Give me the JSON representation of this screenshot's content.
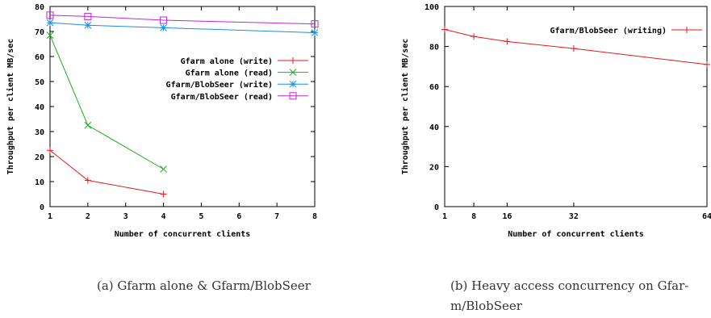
{
  "chart_data": [
    {
      "type": "line",
      "xlabel": "Number of concurrent clients",
      "ylabel": "Throughput per client MB/sec",
      "x_ticks": [
        1,
        2,
        3,
        4,
        5,
        6,
        7,
        8
      ],
      "y_ticks": [
        0,
        10,
        20,
        30,
        40,
        50,
        60,
        70,
        80
      ],
      "xlim": [
        1,
        8
      ],
      "ylim": [
        0,
        80
      ],
      "legend_position": "right",
      "series": [
        {
          "name": "Gfarm alone (write)",
          "color": "#e8181c",
          "marker": "plus",
          "x": [
            1,
            2,
            4
          ],
          "y": [
            22.5,
            10.5,
            5
          ]
        },
        {
          "name": "Gfarm alone (read)",
          "color": "#1ab41a",
          "marker": "cross",
          "x": [
            1,
            2,
            4
          ],
          "y": [
            68.5,
            32.5,
            15
          ]
        },
        {
          "name": "Gfarm/BlobSeer (write)",
          "color": "#1a8ee8",
          "marker": "star",
          "x": [
            1,
            2,
            4,
            8
          ],
          "y": [
            73.5,
            72.5,
            71.5,
            69.5
          ]
        },
        {
          "name": "Gfarm/BlobSeer (read)",
          "color": "#c026d3",
          "marker": "square",
          "x": [
            1,
            2,
            4,
            8
          ],
          "y": [
            76.5,
            76,
            74.5,
            73
          ]
        }
      ]
    },
    {
      "type": "line",
      "xlabel": "Number of concurrent clients",
      "ylabel": "Throughput per client MB/sec",
      "x_ticks": [
        1,
        8,
        16,
        32,
        64
      ],
      "y_ticks": [
        0,
        20,
        40,
        60,
        80,
        100
      ],
      "xlim": [
        1,
        64
      ],
      "ylim": [
        0,
        100
      ],
      "legend_position": "top-right",
      "series": [
        {
          "name": "Gfarm/BlobSeer (writing)",
          "color": "#e8181c",
          "marker": "plus",
          "x": [
            1,
            8,
            16,
            32,
            64
          ],
          "y": [
            88.5,
            85,
            82.5,
            79,
            71
          ]
        }
      ]
    }
  ],
  "captions": {
    "a": "(a) Gfarm alone & Gfarm/BlobSeer",
    "b_line1": "(b) Heavy access concurrency on Gfar-",
    "b_line2": "m/BlobSeer"
  }
}
